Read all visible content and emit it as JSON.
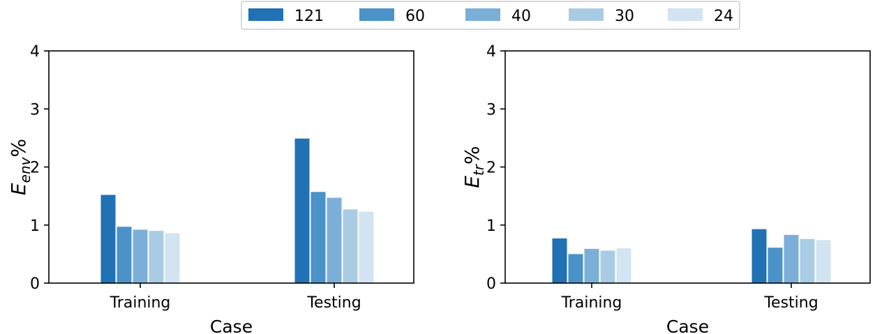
{
  "legend": {
    "placement": "top-center",
    "entries": [
      {
        "label": "121",
        "color": "#2171b5"
      },
      {
        "label": "60",
        "color": "#4a92c8"
      },
      {
        "label": "40",
        "color": "#7bafd7"
      },
      {
        "label": "30",
        "color": "#a9cce4"
      },
      {
        "label": "24",
        "color": "#d2e4f1"
      }
    ]
  },
  "chart_data": [
    {
      "type": "bar",
      "xlabel": "Case",
      "ylabel": "E_env %",
      "ylabel_main": "E",
      "ylabel_sub": "env",
      "ylabel_suffix": "%",
      "ylim": [
        0,
        4
      ],
      "yticks": [
        "0",
        "1",
        "2",
        "3",
        "4"
      ],
      "categories": [
        "Training",
        "Testing"
      ],
      "grid": false,
      "series": [
        {
          "name": "121",
          "color": "#2171b5",
          "values": [
            1.52,
            2.49
          ]
        },
        {
          "name": "60",
          "color": "#4a92c8",
          "values": [
            0.97,
            1.57
          ]
        },
        {
          "name": "40",
          "color": "#7bafd7",
          "values": [
            0.92,
            1.47
          ]
        },
        {
          "name": "30",
          "color": "#a9cce4",
          "values": [
            0.9,
            1.27
          ]
        },
        {
          "name": "24",
          "color": "#d2e4f1",
          "values": [
            0.86,
            1.23
          ]
        }
      ]
    },
    {
      "type": "bar",
      "xlabel": "Case",
      "ylabel": "E_tr %",
      "ylabel_main": "E",
      "ylabel_sub": "tr",
      "ylabel_suffix": "%",
      "ylim": [
        0,
        4
      ],
      "yticks": [
        "0",
        "1",
        "2",
        "3",
        "4"
      ],
      "categories": [
        "Training",
        "Testing"
      ],
      "grid": false,
      "series": [
        {
          "name": "121",
          "color": "#2171b5",
          "values": [
            0.77,
            0.93
          ]
        },
        {
          "name": "60",
          "color": "#4a92c8",
          "values": [
            0.5,
            0.61
          ]
        },
        {
          "name": "40",
          "color": "#7bafd7",
          "values": [
            0.59,
            0.83
          ]
        },
        {
          "name": "30",
          "color": "#a9cce4",
          "values": [
            0.56,
            0.76
          ]
        },
        {
          "name": "24",
          "color": "#d2e4f1",
          "values": [
            0.6,
            0.74
          ]
        }
      ]
    }
  ]
}
